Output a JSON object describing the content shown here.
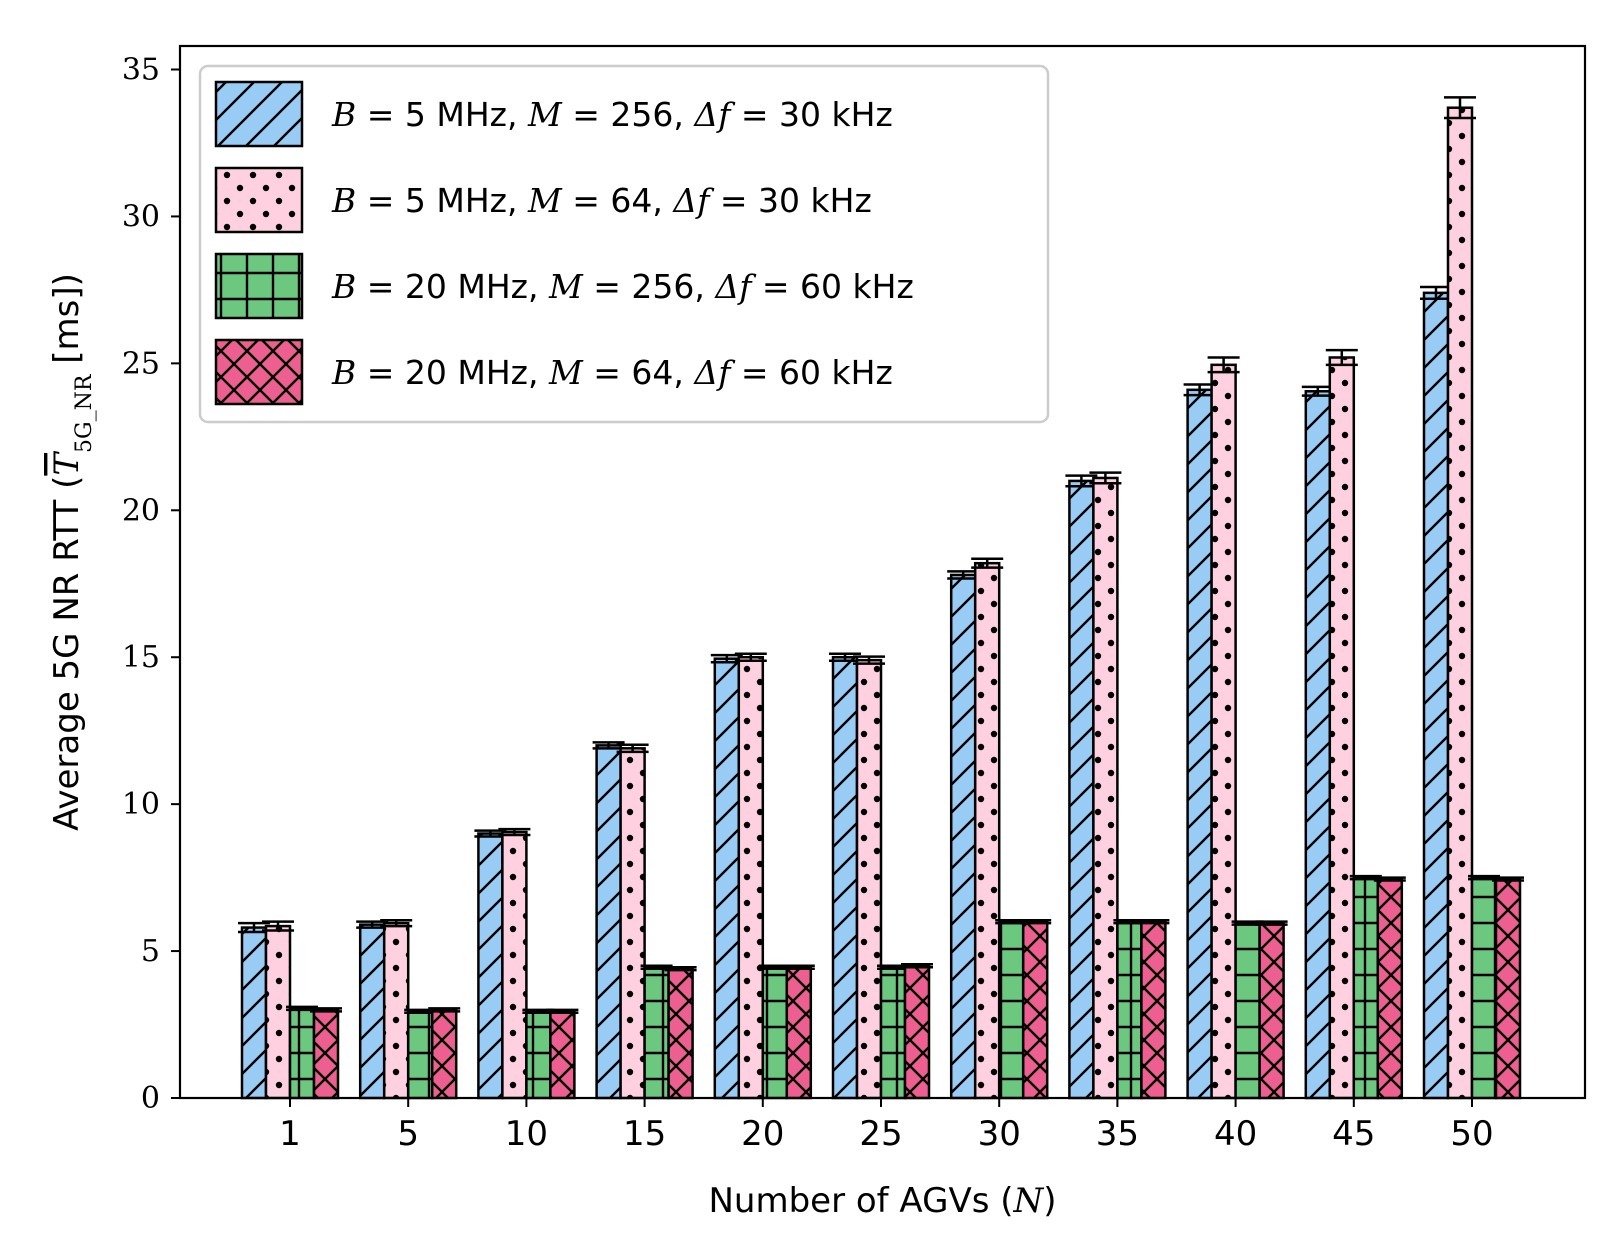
{
  "chart_data": {
    "type": "bar",
    "title": "",
    "xlabel": "Number of AGVs (N)",
    "ylabel": "Average 5G NR RTT (T̅₅G_NR [ms])",
    "ylabel_parts": {
      "pre": "Average 5G NR RTT (",
      "var": "T",
      "sub": "5G_NR",
      "post": " [ms])"
    },
    "xlabel_parts": {
      "pre": "Number of AGVs (",
      "var": "N",
      "post": ")"
    },
    "categories": [
      "1",
      "5",
      "10",
      "15",
      "20",
      "25",
      "30",
      "35",
      "40",
      "45",
      "50"
    ],
    "ylim": [
      0,
      35.8
    ],
    "yticks": [
      0,
      5,
      10,
      15,
      20,
      25,
      30,
      35
    ],
    "legend_position": "top-left",
    "series": [
      {
        "name": "B = 5 MHz, M = 256, Δf = 30 kHz",
        "label_parts": [
          "B",
          " = 5 MHz, ",
          "M",
          " = 256, ",
          "Δf",
          " = 30 kHz"
        ],
        "color": "#99ccf5",
        "hatch": "diagonal",
        "values": [
          5.8,
          5.9,
          9.0,
          12.0,
          14.95,
          15.0,
          17.8,
          21.0,
          24.1,
          24.05,
          27.4
        ],
        "errors": [
          0.15,
          0.1,
          0.1,
          0.1,
          0.12,
          0.12,
          0.12,
          0.18,
          0.18,
          0.15,
          0.2
        ]
      },
      {
        "name": "B = 5 MHz, M = 64, Δf = 30 kHz",
        "label_parts": [
          "B",
          " = 5 MHz, ",
          "M",
          " = 64, ",
          "Δf",
          " = 30 kHz"
        ],
        "color": "#ffd0e0",
        "hatch": "dots",
        "values": [
          5.85,
          5.95,
          9.05,
          11.9,
          15.0,
          14.9,
          18.2,
          21.1,
          24.95,
          25.2,
          33.7
        ],
        "errors": [
          0.15,
          0.1,
          0.1,
          0.12,
          0.12,
          0.12,
          0.15,
          0.18,
          0.25,
          0.25,
          0.35
        ]
      },
      {
        "name": "B = 20 MHz, M = 256, Δf = 60 kHz",
        "label_parts": [
          "B",
          " = 20 MHz, ",
          "M",
          " = 256, ",
          "Δf",
          " = 60 kHz"
        ],
        "color": "#6cc77f",
        "hatch": "grid",
        "values": [
          3.05,
          2.95,
          2.95,
          4.45,
          4.45,
          4.45,
          6.0,
          6.0,
          5.95,
          7.5,
          7.5
        ],
        "errors": [
          0.05,
          0.05,
          0.05,
          0.05,
          0.05,
          0.05,
          0.05,
          0.05,
          0.05,
          0.05,
          0.05
        ]
      },
      {
        "name": "B = 20 MHz, M = 64, Δf = 60 kHz",
        "label_parts": [
          "B",
          " = 20 MHz, ",
          "M",
          " = 64, ",
          "Δf",
          " = 60 kHz"
        ],
        "color": "#ed5f90",
        "hatch": "crosshatch",
        "values": [
          3.0,
          3.0,
          2.95,
          4.4,
          4.45,
          4.5,
          6.0,
          6.0,
          5.95,
          7.45,
          7.45
        ],
        "errors": [
          0.05,
          0.05,
          0.05,
          0.05,
          0.05,
          0.05,
          0.05,
          0.05,
          0.05,
          0.05,
          0.05
        ]
      }
    ]
  }
}
